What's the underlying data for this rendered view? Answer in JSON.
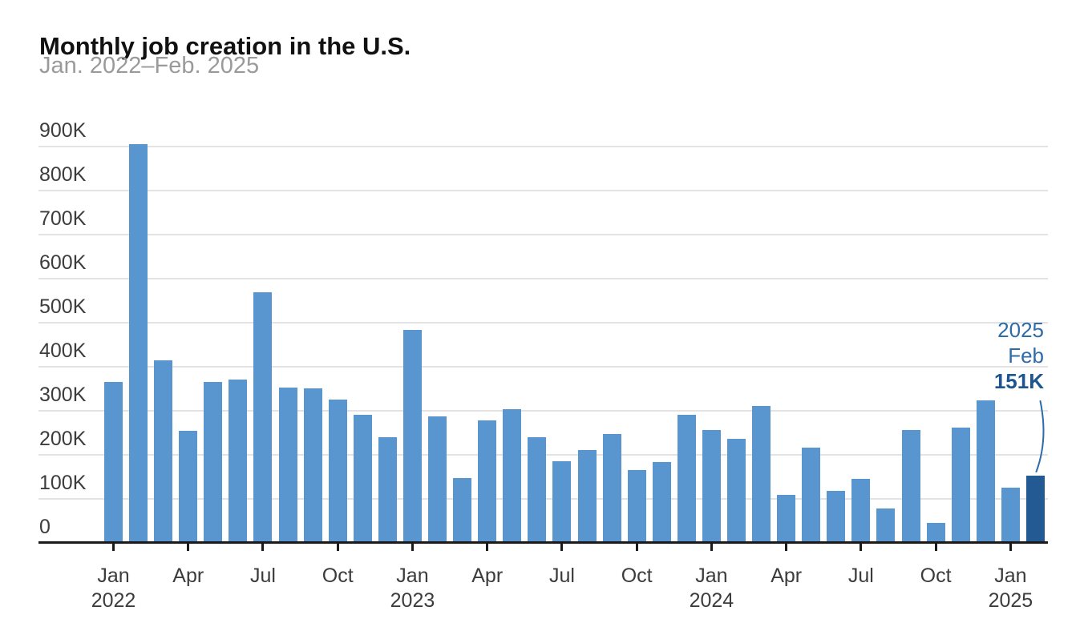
{
  "header": {
    "title": "Monthly job creation in the U.S.",
    "subtitle": "Jan. 2022–Feb. 2025"
  },
  "annotation": {
    "year": "2025",
    "month": "Feb",
    "value": "151K"
  },
  "chart_data": {
    "type": "bar",
    "title": "Monthly job creation in the U.S.",
    "subtitle": "Jan. 2022–Feb. 2025",
    "unit": "jobs added per month, thousands",
    "categories": [
      "Jan 2022",
      "Feb 2022",
      "Mar 2022",
      "Apr 2022",
      "May 2022",
      "Jun 2022",
      "Jul 2022",
      "Aug 2022",
      "Sep 2022",
      "Oct 2022",
      "Nov 2022",
      "Dec 2022",
      "Jan 2023",
      "Feb 2023",
      "Mar 2023",
      "Apr 2023",
      "May 2023",
      "Jun 2023",
      "Jul 2023",
      "Aug 2023",
      "Sep 2023",
      "Oct 2023",
      "Nov 2023",
      "Dec 2023",
      "Jan 2024",
      "Feb 2024",
      "Mar 2024",
      "Apr 2024",
      "May 2024",
      "Jun 2024",
      "Jul 2024",
      "Aug 2024",
      "Sep 2024",
      "Oct 2024",
      "Nov 2024",
      "Dec 2024",
      "Jan 2025",
      "Feb 2025"
    ],
    "values_thousands": [
      364,
      904,
      414,
      254,
      364,
      370,
      568,
      352,
      350,
      324,
      290,
      239,
      482,
      287,
      146,
      278,
      303,
      240,
      184,
      210,
      246,
      165,
      182,
      290,
      256,
      236,
      310,
      108,
      216,
      118,
      144,
      78,
      255,
      44,
      261,
      323,
      125,
      151
    ],
    "ylim_thousands": [
      0,
      900
    ],
    "grid": true,
    "legend": "none",
    "y_ticks": [
      {
        "value": 0,
        "label": "0"
      },
      {
        "value": 100,
        "label": "100K"
      },
      {
        "value": 200,
        "label": "200K"
      },
      {
        "value": 300,
        "label": "300K"
      },
      {
        "value": 400,
        "label": "400K"
      },
      {
        "value": 500,
        "label": "500K"
      },
      {
        "value": 600,
        "label": "600K"
      },
      {
        "value": 700,
        "label": "700K"
      },
      {
        "value": 800,
        "label": "800K"
      },
      {
        "value": 900,
        "label": "900K"
      }
    ],
    "x_ticks": [
      {
        "index": 0,
        "label": "Jan",
        "year": "2022"
      },
      {
        "index": 3,
        "label": "Apr"
      },
      {
        "index": 6,
        "label": "Jul"
      },
      {
        "index": 9,
        "label": "Oct"
      },
      {
        "index": 12,
        "label": "Jan",
        "year": "2023"
      },
      {
        "index": 15,
        "label": "Apr"
      },
      {
        "index": 18,
        "label": "Jul"
      },
      {
        "index": 21,
        "label": "Oct"
      },
      {
        "index": 24,
        "label": "Jan",
        "year": "2024"
      },
      {
        "index": 27,
        "label": "Apr"
      },
      {
        "index": 30,
        "label": "Jul"
      },
      {
        "index": 33,
        "label": "Oct"
      },
      {
        "index": 36,
        "label": "Jan",
        "year": "2025"
      }
    ],
    "highlight_index": 37,
    "annotation": {
      "lines": [
        "2025",
        "Feb"
      ],
      "value": "151K",
      "target": "Feb 2025"
    },
    "colors": {
      "bar": "#5995ce",
      "highlight_bar": "#235a94",
      "annotation_text": "#2d6ba9",
      "annotation_value": "#1d5590",
      "gridline": "#e3e3e3",
      "axis_line": "#1a1a1a",
      "tick_label": "#3c3c3c",
      "title": "#111111",
      "subtitle": "#9a9a9a"
    }
  }
}
